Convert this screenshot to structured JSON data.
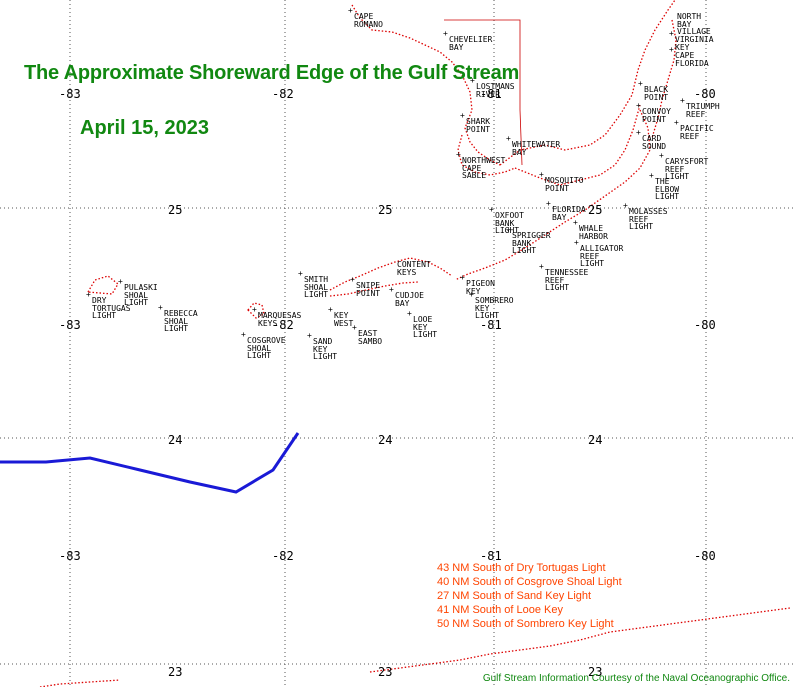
{
  "title": "The Approximate Shoreward Edge of the Gulf Stream",
  "date": "April 15, 2023",
  "colors": {
    "title": "#118811",
    "stream": "#1a1ad6",
    "coast": "#dd0000",
    "distance_text": "#ff4400",
    "grid": "#555555"
  },
  "grid": {
    "longitudes": [
      "-83",
      "-82",
      "-81",
      "-80"
    ],
    "latitudes": [
      "25",
      "24",
      "23"
    ]
  },
  "places": [
    {
      "id": "cape-romano",
      "text": "CAPE\nROMANO"
    },
    {
      "id": "chevelier-bay",
      "text": "CHEVELIER\nBAY"
    },
    {
      "id": "lostmans-river",
      "text": "LOSTMANS\nRIVER"
    },
    {
      "id": "shark-point",
      "text": "SHARK\nPOINT"
    },
    {
      "id": "whitewater-bay",
      "text": "WHITEWATER\nBAY"
    },
    {
      "id": "northwest-cape-sable",
      "text": "NORTHWEST\nCAPE\nSABLE"
    },
    {
      "id": "mosquito-point",
      "text": "MOSQUITO\nPOINT"
    },
    {
      "id": "florida-bay",
      "text": "FLORIDA\nBAY"
    },
    {
      "id": "north-bay-village",
      "text": "NORTH\nBAY\nVILLAGE"
    },
    {
      "id": "virginia-key",
      "text": "VIRGINIA\nKEY"
    },
    {
      "id": "cape-florida",
      "text": "CAPE\nFLORIDA"
    },
    {
      "id": "black-point",
      "text": "BLACK\nPOINT"
    },
    {
      "id": "triumph-reef",
      "text": "TRIUMPH\nREEF"
    },
    {
      "id": "convoy-point",
      "text": "CONVOY\nPOINT"
    },
    {
      "id": "pacific-reef",
      "text": "PACIFIC\nREEF"
    },
    {
      "id": "card-sound",
      "text": "CARD\nSOUND"
    },
    {
      "id": "carysfort-reef-light",
      "text": "CARYSFORT\nREEF\nLIGHT"
    },
    {
      "id": "the-elbow-light",
      "text": "THE\nELBOW\nLIGHT"
    },
    {
      "id": "molasses-reef-light",
      "text": "MOLASSES\nREEF\nLIGHT"
    },
    {
      "id": "whale-harbor",
      "text": "WHALE\nHARBOR"
    },
    {
      "id": "alligator-reef-light",
      "text": "ALLIGATOR\nREEF\nLIGHT"
    },
    {
      "id": "oxfoot-bank-light",
      "text": "OXFOOT\nBANK\nLIGHT"
    },
    {
      "id": "sprigger-bank-light",
      "text": "SPRIGGER\nBANK\nLIGHT"
    },
    {
      "id": "tennessee-reef-light",
      "text": "TENNESSEE\nREEF\nLIGHT"
    },
    {
      "id": "content-keys",
      "text": "CONTENT\nKEYS"
    },
    {
      "id": "smith-shoal-light",
      "text": "SMITH\nSHOAL\nLIGHT"
    },
    {
      "id": "snipe-point",
      "text": "SNIPE\nPOINT"
    },
    {
      "id": "cudjoe-bay",
      "text": "CUDJOE\nBAY"
    },
    {
      "id": "pigeon-key",
      "text": "PIGEON\nKEY"
    },
    {
      "id": "sombrero-key-light",
      "text": "SOMBRERO\nKEY\nLIGHT"
    },
    {
      "id": "pulaski-shoal-light",
      "text": "PULASKI\nSHOAL\nLIGHT"
    },
    {
      "id": "dry-tortugas-light",
      "text": "DRY\nTORTUGAS\nLIGHT"
    },
    {
      "id": "rebecca-shoal-light",
      "text": "REBECCA\nSHOAL\nLIGHT"
    },
    {
      "id": "marquesas-keys",
      "text": "MARQUESAS\nKEYS"
    },
    {
      "id": "key-west",
      "text": "KEY\nWEST"
    },
    {
      "id": "east-sambo",
      "text": "EAST\nSAMBO"
    },
    {
      "id": "looe-key-light",
      "text": "LOOE\nKEY\nLIGHT"
    },
    {
      "id": "cosgrove-shoal-light",
      "text": "COSGROVE\nSHOAL\nLIGHT"
    },
    {
      "id": "sand-key-light",
      "text": "SAND\nKEY\nLIGHT"
    }
  ],
  "distances": [
    "43 NM South of Dry Tortugas Light",
    "40 NM South of Cosgrove Shoal Light",
    "27 NM South of Sand Key Light",
    "41 NM South of Looe Key",
    "50 NM South of Sombrero Key Light"
  ],
  "credit": "Gulf Stream Information Courtesy of the Naval Oceanographic Office."
}
